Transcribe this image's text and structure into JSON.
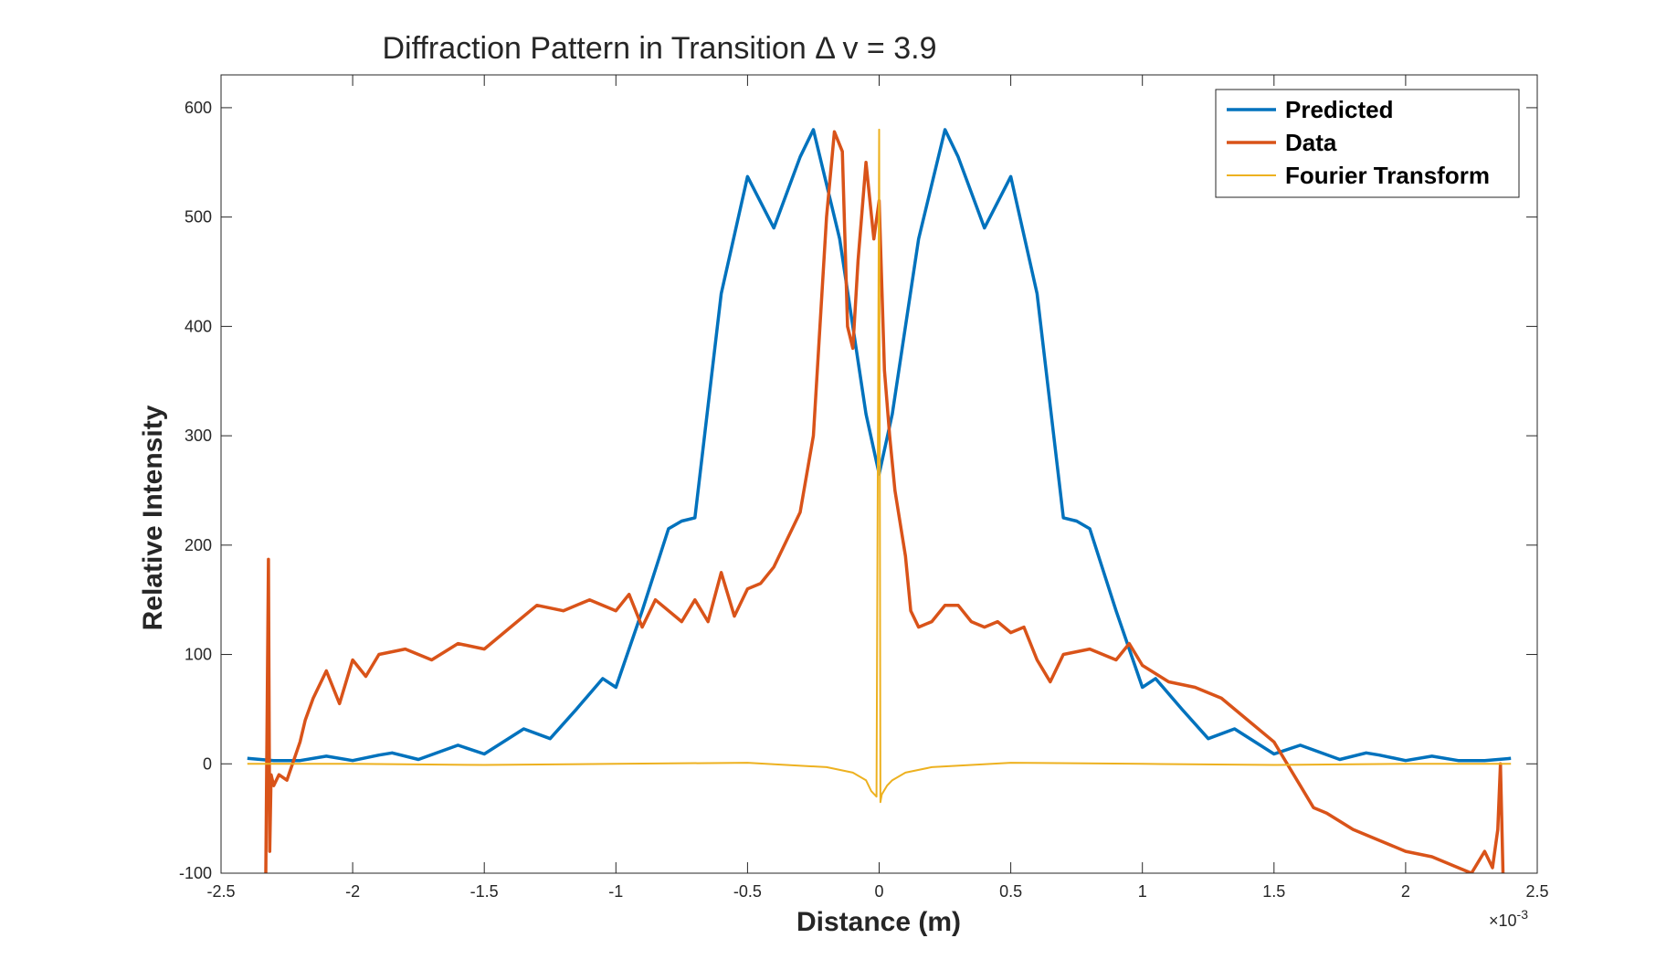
{
  "chart_data": {
    "type": "line",
    "title": "Diffraction Pattern in Transition Δ v = 3.9",
    "xlabel": "Distance (m)",
    "ylabel": "Relative Intensity",
    "x_multiplier": "×10",
    "x_multiplier_exp": "-3",
    "xlim": [
      -2.5,
      2.5
    ],
    "ylim": [
      -100,
      630
    ],
    "xticks": [
      -2.5,
      -2,
      -1.5,
      -1,
      -0.5,
      0,
      0.5,
      1,
      1.5,
      2,
      2.5
    ],
    "xtick_labels": [
      "-2.5",
      "-2",
      "-1.5",
      "-1",
      "-0.5",
      "0",
      "0.5",
      "1",
      "1.5",
      "2",
      "2.5"
    ],
    "yticks": [
      -100,
      0,
      100,
      200,
      300,
      400,
      500,
      600
    ],
    "ytick_labels": [
      "-100",
      "0",
      "100",
      "200",
      "300",
      "400",
      "500",
      "600"
    ],
    "grid": false,
    "legend_position": "top-right",
    "series": [
      {
        "name": "Predicted",
        "color": "#0072BD",
        "x": [
          -2.4,
          -2.3,
          -2.2,
          -2.1,
          -2.0,
          -1.9,
          -1.85,
          -1.75,
          -1.6,
          -1.5,
          -1.35,
          -1.25,
          -1.15,
          -1.05,
          -1.0,
          -0.9,
          -0.8,
          -0.75,
          -0.7,
          -0.6,
          -0.5,
          -0.4,
          -0.3,
          -0.25,
          -0.15,
          -0.05,
          0.0,
          0.05,
          0.15,
          0.25,
          0.3,
          0.4,
          0.5,
          0.6,
          0.7,
          0.75,
          0.8,
          0.9,
          1.0,
          1.05,
          1.15,
          1.25,
          1.35,
          1.5,
          1.6,
          1.75,
          1.85,
          1.9,
          2.0,
          2.1,
          2.2,
          2.3,
          2.4
        ],
        "y": [
          5,
          3,
          3,
          7,
          3,
          8,
          10,
          4,
          17,
          9,
          32,
          23,
          50,
          78,
          70,
          140,
          215,
          222,
          225,
          430,
          537,
          490,
          555,
          580,
          480,
          320,
          265,
          320,
          480,
          580,
          555,
          490,
          537,
          430,
          225,
          222,
          215,
          140,
          70,
          78,
          50,
          23,
          32,
          9,
          17,
          4,
          10,
          8,
          3,
          7,
          3,
          3,
          5
        ]
      },
      {
        "name": "Data",
        "color": "#D95319",
        "x": [
          -2.33,
          -2.32,
          -2.315,
          -2.31,
          -2.3,
          -2.28,
          -2.25,
          -2.2,
          -2.18,
          -2.15,
          -2.1,
          -2.05,
          -2.0,
          -1.95,
          -1.9,
          -1.8,
          -1.7,
          -1.6,
          -1.5,
          -1.4,
          -1.3,
          -1.2,
          -1.1,
          -1.0,
          -0.95,
          -0.9,
          -0.85,
          -0.75,
          -0.7,
          -0.65,
          -0.6,
          -0.55,
          -0.5,
          -0.45,
          -0.4,
          -0.3,
          -0.25,
          -0.2,
          -0.17,
          -0.14,
          -0.12,
          -0.1,
          -0.08,
          -0.05,
          -0.02,
          0.0,
          0.02,
          0.04,
          0.06,
          0.1,
          0.12,
          0.15,
          0.2,
          0.25,
          0.3,
          0.35,
          0.4,
          0.45,
          0.5,
          0.55,
          0.6,
          0.65,
          0.7,
          0.8,
          0.9,
          0.95,
          1.0,
          1.1,
          1.2,
          1.3,
          1.4,
          1.5,
          1.6,
          1.65,
          1.7,
          1.8,
          1.9,
          2.0,
          2.1,
          2.2,
          2.25,
          2.3,
          2.33,
          2.35,
          2.36,
          2.37
        ],
        "y": [
          -100,
          187,
          -80,
          -10,
          -20,
          -10,
          -15,
          20,
          40,
          60,
          85,
          55,
          95,
          80,
          100,
          105,
          95,
          110,
          105,
          125,
          145,
          140,
          150,
          140,
          155,
          125,
          150,
          130,
          150,
          130,
          175,
          135,
          160,
          165,
          180,
          230,
          300,
          500,
          578,
          560,
          400,
          380,
          460,
          550,
          480,
          515,
          360,
          300,
          250,
          190,
          140,
          125,
          130,
          145,
          145,
          130,
          125,
          130,
          120,
          125,
          95,
          75,
          100,
          105,
          95,
          110,
          90,
          75,
          70,
          60,
          40,
          20,
          -20,
          -40,
          -45,
          -60,
          -70,
          -80,
          -85,
          -95,
          -100,
          -80,
          -95,
          -60,
          0,
          -100
        ]
      },
      {
        "name": "Fourier Transform",
        "color": "#EDB120",
        "x": [
          -2.4,
          -2.0,
          -1.5,
          -1.0,
          -0.5,
          -0.2,
          -0.1,
          -0.05,
          -0.03,
          -0.01,
          0.0,
          0.005,
          0.01,
          0.03,
          0.05,
          0.1,
          0.2,
          0.5,
          1.0,
          1.5,
          2.0,
          2.4
        ],
        "y": [
          0,
          0,
          -1,
          0,
          1,
          -3,
          -8,
          -15,
          -25,
          -30,
          580,
          -35,
          -28,
          -20,
          -15,
          -8,
          -3,
          1,
          0,
          -1,
          0,
          0
        ]
      }
    ]
  }
}
